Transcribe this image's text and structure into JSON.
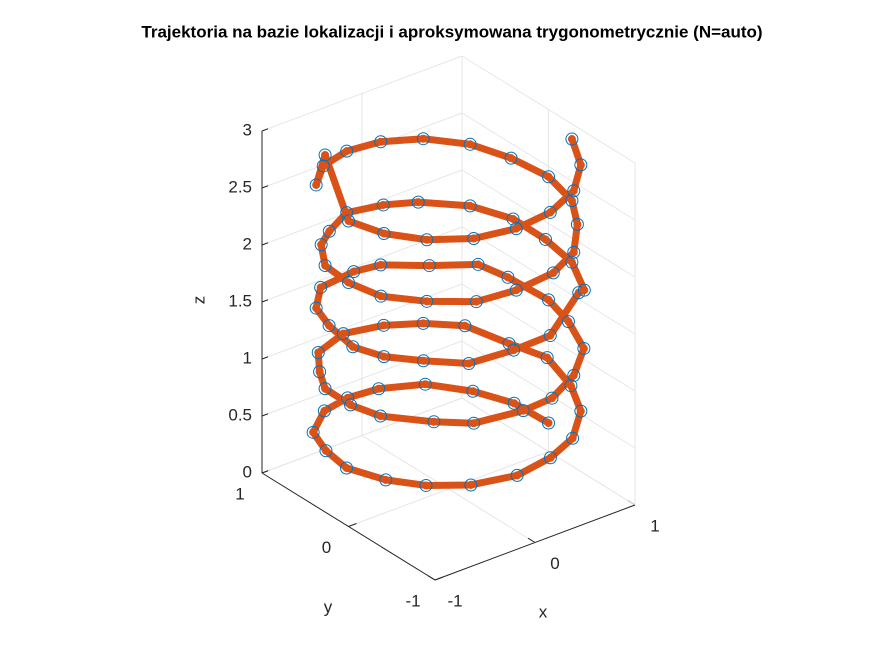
{
  "chart_data": {
    "type": "line3d",
    "title": "Trajektoria na bazie lokalizacji i aproksymowana trygonometrycznie (N=auto)",
    "xlabel": "x",
    "ylabel": "y",
    "zlabel": "z",
    "xlim": [
      -1,
      1
    ],
    "ylim": [
      -1,
      1
    ],
    "zlim": [
      0,
      3
    ],
    "xticks": [
      -1,
      0,
      1
    ],
    "yticks": [
      -1,
      0,
      1
    ],
    "zticks": [
      0,
      0.5,
      1,
      1.5,
      2,
      2.5,
      3
    ],
    "grid": true,
    "line_color": "#d95319",
    "marker_color": "#0072bd",
    "x": [
      1.0,
      0.95,
      0.78,
      0.52,
      0.15,
      -0.17,
      -0.48,
      -0.8,
      -0.94,
      -1.02,
      -0.93,
      -0.77,
      -0.52,
      -0.17,
      0.18,
      0.48,
      0.77,
      0.93,
      1.03,
      0.9,
      0.77,
      0.5,
      0.2,
      -0.17,
      -0.55,
      -0.77,
      -0.94,
      -0.98,
      -0.94,
      -0.7,
      -0.5,
      -0.1,
      0.17,
      0.5,
      0.8,
      0.94,
      1.0,
      0.94,
      0.85,
      0.5,
      0.17,
      -0.1,
      -0.5,
      -0.77,
      -0.9,
      -1.0,
      -0.94,
      -0.77,
      -0.55,
      -0.17,
      0.17,
      0.55,
      0.77,
      0.94,
      0.97,
      0.94,
      0.77,
      0.45,
      0.17,
      -0.17,
      -0.5,
      -0.72,
      -0.94,
      -1.0,
      -0.97,
      -0.77,
      -0.5,
      -0.17,
      0.2,
      0.5,
      0.77,
      0.94,
      1.0,
      0.92,
      0.77,
      0.5,
      0.17,
      -0.17,
      -0.5,
      -0.77,
      -0.94,
      -1.0,
      -0.94,
      -0.77,
      -0.5,
      -0.17,
      0.17,
      0.5,
      0.77,
      0.94
    ],
    "y": [
      0.0,
      0.34,
      0.62,
      0.87,
      0.98,
      0.97,
      0.88,
      0.64,
      0.33,
      0.0,
      -0.35,
      -0.63,
      -0.86,
      -0.99,
      -0.97,
      -0.88,
      -0.64,
      -0.34,
      0.05,
      0.34,
      0.7,
      0.87,
      0.98,
      1.02,
      0.87,
      0.6,
      0.34,
      0.0,
      -0.3,
      -0.64,
      -0.87,
      -0.98,
      -1.0,
      -0.87,
      -0.64,
      -0.3,
      0.0,
      0.4,
      0.64,
      0.8,
      0.98,
      0.98,
      0.9,
      0.64,
      0.34,
      -0.05,
      -0.34,
      -0.6,
      -0.87,
      -0.95,
      -0.98,
      -0.87,
      -0.68,
      -0.34,
      0.0,
      0.34,
      0.64,
      0.87,
      0.95,
      0.98,
      0.8,
      0.64,
      0.34,
      0.0,
      -0.34,
      -0.64,
      -0.9,
      -0.98,
      -0.98,
      -0.87,
      -0.6,
      -0.34,
      0.0,
      0.34,
      0.64,
      0.87,
      0.98,
      0.98,
      0.87,
      0.64,
      0.34,
      0.0,
      -0.34,
      -0.64,
      -0.87,
      -0.98,
      -0.98,
      -0.87,
      -0.64,
      -0.34
    ],
    "z": [
      0.25,
      0.28,
      0.31,
      0.34,
      0.37,
      0.4,
      0.43,
      0.46,
      0.49,
      0.52,
      0.55,
      0.58,
      0.61,
      0.64,
      0.67,
      0.7,
      0.73,
      0.76,
      0.79,
      0.82,
      0.85,
      0.88,
      0.91,
      0.94,
      0.97,
      1.0,
      1.03,
      1.06,
      1.09,
      1.12,
      1.15,
      1.18,
      1.21,
      1.24,
      1.27,
      1.3,
      1.33,
      1.36,
      1.39,
      1.42,
      1.45,
      1.48,
      1.51,
      1.54,
      1.57,
      1.6,
      1.63,
      1.66,
      1.69,
      1.72,
      1.75,
      1.95,
      1.81,
      1.84,
      1.87,
      1.9,
      1.93,
      1.96,
      1.99,
      2.02,
      2.05,
      2.08,
      2.11,
      2.14,
      2.17,
      2.2,
      2.23,
      2.26,
      2.29,
      2.32,
      2.35,
      2.38,
      2.41,
      2.44,
      2.47,
      2.5,
      2.53,
      2.56,
      2.59,
      2.62,
      3.08,
      2.68,
      2.71,
      2.74,
      2.77,
      2.8,
      2.83,
      2.86,
      2.89,
      2.92
    ]
  }
}
